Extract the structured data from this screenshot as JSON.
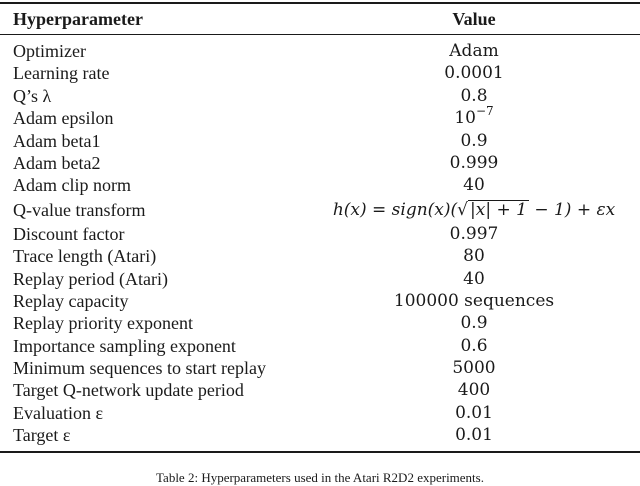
{
  "table": {
    "headers": {
      "param": "Hyperparameter",
      "value": "Value"
    },
    "rows": [
      {
        "param": "Optimizer",
        "value": "Adam"
      },
      {
        "param": "Learning rate",
        "value": "0.0001"
      },
      {
        "param": "Q’s λ",
        "value": "0.8"
      },
      {
        "param": "Adam epsilon",
        "value_base": "10",
        "value_exp": "−7"
      },
      {
        "param": "Adam beta1",
        "value": "0.9"
      },
      {
        "param": "Adam beta2",
        "value": "0.999"
      },
      {
        "param": "Adam clip norm",
        "value": "40"
      },
      {
        "param": "Q-value transform",
        "formula": {
          "lhs": "h(x) = sign(x)(",
          "sqrt_body": "|x| + 1",
          "rhs": " − 1) + εx",
          "full": "h(x) = sign(x)(√(|x| + 1) − 1) + εx"
        }
      },
      {
        "param": "Discount factor",
        "value": "0.997"
      },
      {
        "param": "Trace length (Atari)",
        "value": "80"
      },
      {
        "param": "Replay period (Atari)",
        "value": "40"
      },
      {
        "param": "Replay capacity",
        "value": "100000 sequences"
      },
      {
        "param": "Replay priority exponent",
        "value": "0.9"
      },
      {
        "param": "Importance sampling exponent",
        "value": "0.6"
      },
      {
        "param": "Minimum sequences to start replay",
        "value": "5000"
      },
      {
        "param": "Target Q-network update period",
        "value": "400"
      },
      {
        "param": "Evaluation ε",
        "value": "0.01"
      },
      {
        "param": "Target ε",
        "value": "0.01"
      }
    ]
  },
  "caption": "Table 2: Hyperparameters used in the Atari R2D2 experiments."
}
